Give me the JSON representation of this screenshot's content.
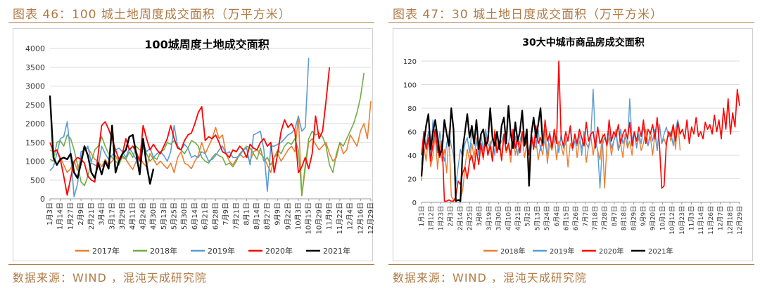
{
  "left": {
    "caption": "图表 46：100 城土地周度成交面积（万平方米）",
    "source": "数据来源：WIND ，混沌天成研究院"
  },
  "right": {
    "caption": "图表 47：30 城土地日度成交面积（万平方米）",
    "source": "数据来源：WIND ，混沌天成研究院"
  },
  "chart_data": [
    {
      "type": "line",
      "title": "100城周度土地成交面积",
      "xlabel": "",
      "ylabel": "",
      "ylim": [
        0,
        4000
      ],
      "yticks": [
        0,
        500,
        1000,
        1500,
        2000,
        2500,
        3000,
        3500,
        4000
      ],
      "xticks": [
        "1月3日",
        "1月14日",
        "1月27日",
        "2月9日",
        "2月21日",
        "3月4日",
        "3月17日",
        "3月29日",
        "4月11日",
        "4月24日",
        "4月30日",
        "5月13日",
        "5月25日",
        "5月30日",
        "6月14日",
        "6月21日",
        "6月28日",
        "7月9日",
        "7月21日",
        "8月1日",
        "8月14日",
        "8月27日",
        "9月9日",
        "9月22日",
        "10月3日",
        "10月15日",
        "10月29日",
        "11月9日",
        "11月22日",
        "12月4日",
        "12月16日",
        "12月29日"
      ],
      "grid": true,
      "legend_position": "bottom",
      "series": [
        {
          "name": "2017年",
          "color": "#ed7d31",
          "values": [
            1300,
            1250,
            1280,
            1100,
            900,
            700,
            800,
            1000,
            750,
            1100,
            1300,
            1350,
            1200,
            1050,
            1000,
            850,
            1050,
            900,
            1000,
            1150,
            950,
            1100,
            1050,
            900,
            780,
            1000,
            1100,
            950,
            850,
            1200,
            1050,
            900,
            1000,
            900,
            800,
            950,
            700,
            1100,
            1250,
            950,
            900,
            800,
            1000,
            1150,
            1500,
            1200,
            1400,
            1600,
            1900,
            1600,
            1700,
            1200,
            1000,
            900,
            1050,
            1200,
            1100,
            1150,
            1000,
            1250,
            1300,
            1200,
            1100,
            900,
            700,
            1100,
            1200,
            1000,
            1150,
            1300,
            1400,
            1250,
            2200,
            80,
            800,
            1500,
            1600,
            1450,
            1300,
            1400,
            1500,
            1200,
            1000,
            1100,
            1500,
            1200,
            1300,
            1700,
            1550,
            1400,
            1800,
            2000,
            1600,
            2600
          ]
        },
        {
          "name": "2018年",
          "color": "#70ad47",
          "values": [
            1050,
            1000,
            1500,
            1550,
            1400,
            1700,
            1600,
            1300,
            900,
            450,
            350,
            600,
            1000,
            1300,
            1400,
            1650,
            1400,
            1200,
            1100,
            1000,
            900,
            1150,
            1050,
            1250,
            1100,
            1400,
            1300,
            1350,
            1200,
            1000,
            1100,
            1050,
            1250,
            1300,
            1500,
            1450,
            1550,
            1400,
            1300,
            1200,
            1350,
            1550,
            1500,
            1400,
            1100,
            1000,
            950,
            1100,
            1200,
            1150,
            1100,
            900,
            950,
            850,
            1000,
            1200,
            1300,
            1400,
            1350,
            1200,
            1050,
            1350,
            1000,
            1100,
            900,
            1100,
            1300,
            1200,
            1400,
            1500,
            1450,
            1600,
            1300,
            100,
            900,
            1600,
            1800,
            1700,
            1750,
            1650,
            1400,
            900,
            700,
            1200,
            1500,
            1400,
            1600,
            1800,
            2000,
            2300,
            2700,
            3350
          ]
        },
        {
          "name": "2019年",
          "color": "#5b9bd5",
          "values": [
            750,
            850,
            1200,
            1600,
            1650,
            2050,
            1200,
            50,
            400,
            1250,
            1300,
            1400,
            950,
            900,
            850,
            1400,
            1200,
            1050,
            1150,
            1300,
            1350,
            1250,
            1100,
            1350,
            1200,
            1050,
            700,
            1500,
            1250,
            1350,
            1100,
            1200,
            1250,
            1150,
            1000,
            1250,
            1950,
            1400,
            1300,
            1450,
            1350,
            1100,
            1150,
            1100,
            1250,
            1200,
            1000,
            1050,
            1150,
            1300,
            1400,
            1200,
            1250,
            1100,
            1100,
            1150,
            1300,
            1350,
            900,
            1700,
            1750,
            1800,
            1300,
            200,
            1400,
            1400,
            1450,
            1500,
            1600,
            1700,
            1750,
            1850,
            2200,
            1800,
            1900,
            3750
          ]
        },
        {
          "name": "2020年",
          "color": "#ff0000",
          "values": [
            1500,
            1250,
            1300,
            1050,
            600,
            100,
            550,
            1000,
            1100,
            1050,
            950,
            600,
            500,
            450,
            1200,
            1950,
            2050,
            1850,
            1600,
            1300,
            1050,
            1200,
            1600,
            1300,
            1400,
            1250,
            1000,
            1950,
            1600,
            1300,
            1450,
            1300,
            1200,
            1400,
            1600,
            1950,
            1600,
            1350,
            1300,
            1550,
            1700,
            1750,
            2000,
            2300,
            2450,
            1550,
            1650,
            1600,
            1700,
            1500,
            1250,
            1200,
            1100,
            1300,
            1250,
            1400,
            1300,
            1100,
            1450,
            1350,
            1300,
            1500,
            1600,
            1400,
            1500,
            700,
            1200,
            1800,
            2100,
            1900,
            2000,
            1800,
            700,
            850,
            1100,
            800,
            1200,
            2200,
            1600,
            1800,
            2600,
            3500
          ]
        },
        {
          "name": "2021年",
          "color": "#000000",
          "values": [
            2750,
            1100,
            900,
            1050,
            1100,
            1050,
            1200,
            700,
            550,
            950,
            1400,
            1150,
            700,
            550,
            950,
            650,
            1000,
            800,
            1950,
            700,
            1000,
            1200,
            1300,
            1650,
            1700,
            1200,
            650,
            1600,
            900,
            400,
            800
          ]
        }
      ]
    },
    {
      "type": "line",
      "title": "30大中城市商品房成交面积",
      "xlabel": "",
      "ylabel": "",
      "ylim": [
        0,
        120
      ],
      "yticks": [
        0,
        20,
        40,
        60,
        80,
        100,
        120
      ],
      "xticks": [
        "1月1日",
        "1月12日",
        "1月23日",
        "2月3日",
        "2月14日",
        "2月25日",
        "3月8日",
        "3月19日",
        "3月30日",
        "4月10日",
        "4月21日",
        "5月2日",
        "5月13日",
        "5月24日",
        "6月4日",
        "6月15日",
        "6月26日",
        "7月7日",
        "7月18日",
        "7月28日",
        "8月7日",
        "8月18日",
        "8月29日",
        "9月9日",
        "9月20日",
        "10月1日",
        "10月12日",
        "10月23日",
        "11月3日",
        "11月14日",
        "11月26日",
        "12月7日",
        "12月18日",
        "12月29日"
      ],
      "grid": true,
      "legend_position": "bottom",
      "series": [
        {
          "name": "2018年",
          "color": "#ed7d31",
          "values": [
            18,
            48,
            35,
            55,
            30,
            40,
            58,
            28,
            52,
            35,
            45,
            25,
            60,
            5,
            2,
            1,
            2,
            3,
            10,
            30,
            45,
            35,
            50,
            38,
            55,
            42,
            48,
            36,
            58,
            40,
            52,
            38,
            62,
            45,
            50,
            35,
            55,
            42,
            48,
            34,
            60,
            40,
            52,
            44,
            56,
            38,
            50,
            30,
            58,
            45,
            54,
            36,
            48,
            40,
            62,
            33,
            50,
            44,
            58,
            36,
            52,
            48,
            40,
            55,
            30,
            50,
            45,
            58,
            38,
            52,
            46,
            60,
            34,
            48,
            56,
            40,
            52,
            44,
            36,
            58,
            12,
            48,
            55,
            40,
            52,
            62,
            44,
            50,
            38,
            58,
            46,
            52,
            40,
            60,
            48,
            55,
            44,
            50,
            62,
            48,
            56,
            40,
            58,
            44,
            66,
            50,
            54,
            48,
            60,
            52,
            64,
            45,
            70,
            44
          ]
        },
        {
          "name": "2019年",
          "color": "#5b9bd5",
          "values": [
            32,
            55,
            48,
            60,
            40,
            70,
            52,
            42,
            60,
            45,
            35,
            50,
            58,
            48,
            40,
            15,
            30,
            45,
            38,
            50,
            55,
            42,
            60,
            48,
            52,
            40,
            58,
            44,
            62,
            50,
            46,
            55,
            40,
            60,
            48,
            52,
            58,
            44,
            50,
            62,
            46,
            56,
            40,
            52,
            60,
            48,
            54,
            42,
            58,
            50,
            46,
            62,
            44,
            55,
            50,
            40,
            60,
            48,
            52,
            56,
            42,
            58,
            46,
            50,
            54,
            62,
            44,
            52,
            48,
            58,
            40,
            60,
            50,
            46,
            56,
            96,
            52,
            44,
            12,
            48,
            55,
            50,
            60,
            46,
            52,
            58,
            44,
            62,
            50,
            56,
            48,
            88,
            52,
            60,
            46,
            58,
            50,
            64,
            54,
            48,
            60,
            52,
            62,
            44,
            66,
            50,
            58,
            64,
            56,
            60,
            48,
            62,
            70,
            58
          ]
        },
        {
          "name": "2020年",
          "color": "#ff0000",
          "values": [
            40,
            60,
            45,
            55,
            35,
            50,
            62,
            45,
            38,
            52,
            1,
            1,
            2,
            1,
            1,
            5,
            18,
            15,
            25,
            30,
            20,
            35,
            40,
            28,
            45,
            32,
            50,
            38,
            55,
            40,
            48,
            35,
            60,
            42,
            52,
            36,
            58,
            44,
            50,
            40,
            62,
            46,
            55,
            42,
            60,
            48,
            52,
            40,
            58,
            45,
            65,
            50,
            55,
            48,
            70,
            52,
            58,
            46,
            62,
            50,
            120,
            55,
            48,
            60,
            52,
            65,
            46,
            58,
            50,
            62,
            55,
            48,
            68,
            52,
            58,
            60,
            46,
            64,
            50,
            55,
            58,
            48,
            70,
            52,
            60,
            56,
            66,
            50,
            58,
            62,
            54,
            68,
            48,
            60,
            52,
            64,
            56,
            70,
            50,
            62,
            58,
            66,
            54,
            72,
            48,
            12,
            14,
            50,
            60,
            56,
            66,
            52,
            68,
            58,
            62,
            54,
            70,
            50,
            64,
            58,
            72,
            56,
            60,
            54,
            68,
            62,
            66,
            58,
            74,
            60,
            70,
            54,
            80,
            62,
            88,
            58,
            76,
            64,
            96,
            82
          ]
        },
        {
          "name": "2021年",
          "color": "#000000",
          "values": [
            22,
            50,
            65,
            75,
            45,
            60,
            70,
            55,
            40,
            45,
            70,
            58,
            48,
            80,
            62,
            1,
            2,
            1,
            45,
            60,
            75,
            55,
            65,
            50,
            70,
            45,
            58,
            62,
            48,
            52,
            80,
            55,
            48,
            60,
            45,
            65,
            72,
            50,
            82,
            58,
            46,
            68,
            52,
            60,
            78,
            48,
            62,
            14,
            58,
            72,
            55,
            66,
            80,
            50
          ]
        }
      ]
    }
  ]
}
